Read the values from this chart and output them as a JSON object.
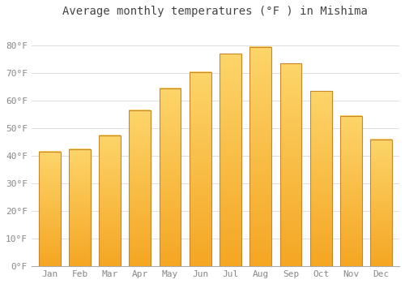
{
  "title": "Average monthly temperatures (°F ) in Mishima",
  "months": [
    "Jan",
    "Feb",
    "Mar",
    "Apr",
    "May",
    "Jun",
    "Jul",
    "Aug",
    "Sep",
    "Oct",
    "Nov",
    "Dec"
  ],
  "values": [
    41.5,
    42.5,
    47.5,
    56.5,
    64.5,
    70.5,
    77.0,
    79.5,
    73.5,
    63.5,
    54.5,
    46.0
  ],
  "bar_color_top": "#FDD56A",
  "bar_color_bottom": "#F5A623",
  "bar_edge_color": "#C8882A",
  "background_color": "#FFFFFF",
  "grid_color": "#DDDDDD",
  "text_color": "#888888",
  "ylim": [
    0,
    88
  ],
  "yticks": [
    0,
    10,
    20,
    30,
    40,
    50,
    60,
    70,
    80
  ],
  "title_fontsize": 10,
  "tick_fontsize": 8
}
